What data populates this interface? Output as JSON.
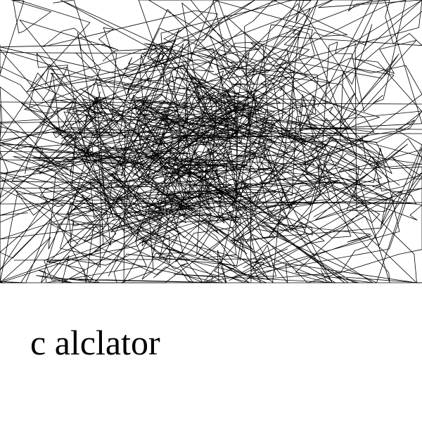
{
  "caption": "c alclator",
  "colors": {
    "background": "#ffffff",
    "ink": "#000000"
  }
}
